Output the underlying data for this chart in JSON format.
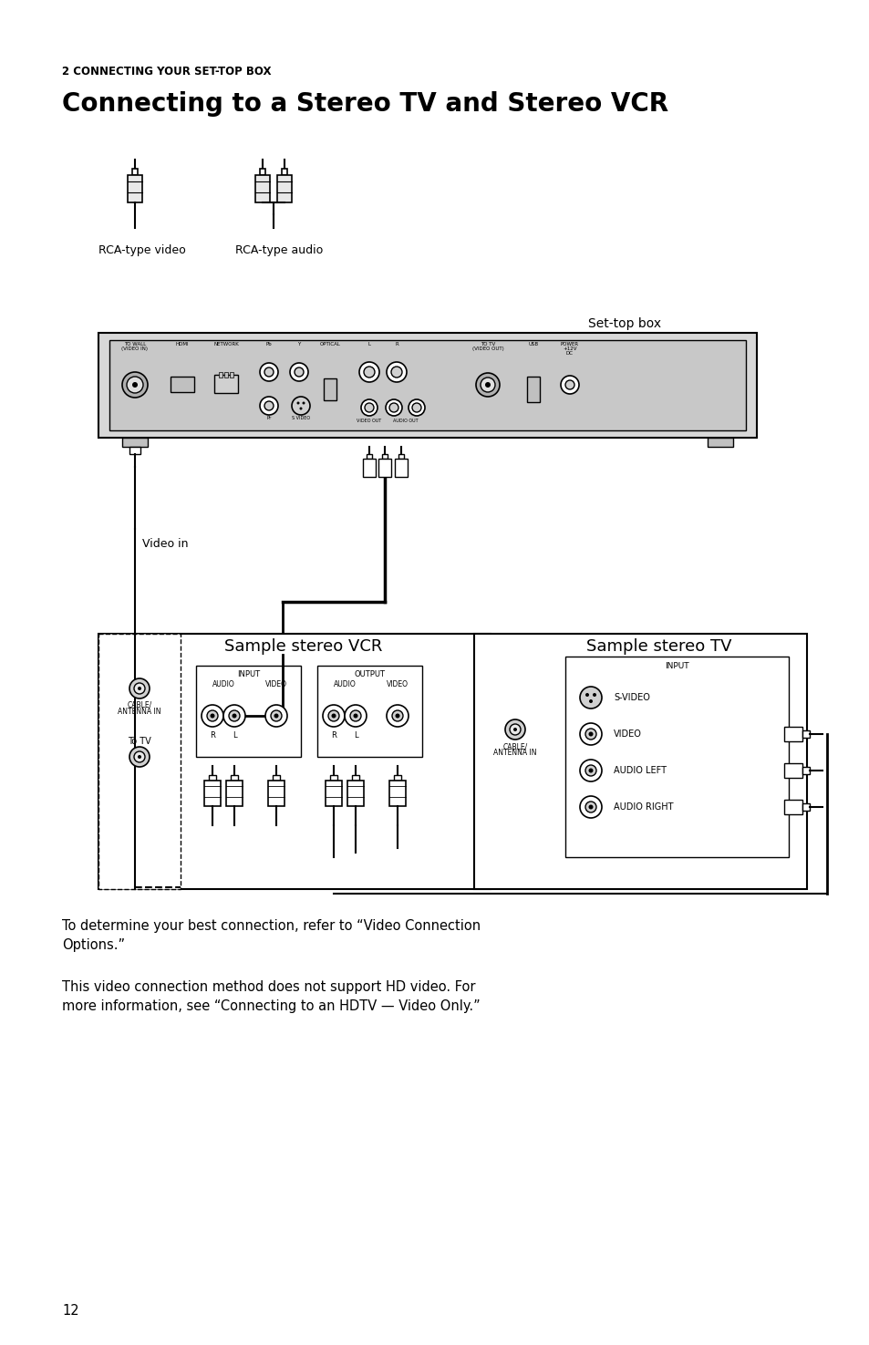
{
  "bg_color": "#ffffff",
  "page_number": "12",
  "section_label": "2 CONNECTING YOUR SET-TOP BOX",
  "title": "Connecting to a Stereo TV and Stereo VCR",
  "rca_video_label": "RCA-type video",
  "rca_audio_label": "RCA-type audio",
  "settopbox_label": "Set-top box",
  "video_in_label": "Video in",
  "vcr_label": "Sample stereo VCR",
  "tv_label": "Sample stereo TV",
  "para1": "To determine your best connection, refer to “Video Connection\nOptions.”",
  "para2": "This video connection method does not support HD video. For\nmore information, see “Connecting to an HDTV — Video Only.”",
  "text_color": "#000000",
  "line_color": "#000000"
}
